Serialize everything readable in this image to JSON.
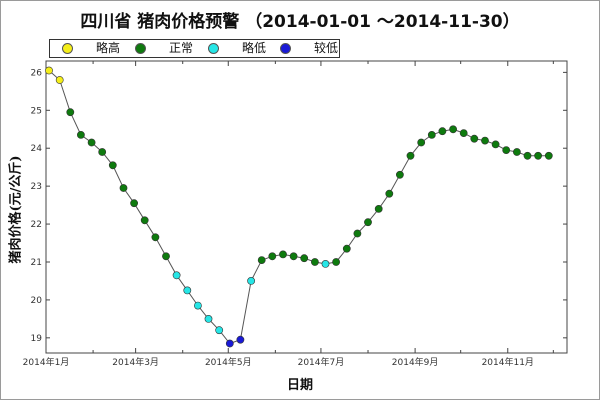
{
  "title": "四川省 猪肉价格预警 （2014-01-01 ～2014-11-30）",
  "legend": [
    {
      "label": "略高",
      "color": "#f4ee1a"
    },
    {
      "label": "正常",
      "color": "#0e7a0e"
    },
    {
      "label": "略低",
      "color": "#26e6e6"
    },
    {
      "label": "较低",
      "color": "#1a1ad6"
    }
  ],
  "chart_data": {
    "type": "line",
    "title": "四川省 猪肉价格预警 （2014-01-01 ～2014-11-30）",
    "xlabel": "日期",
    "ylabel": "猪肉价格(元/公斤)",
    "x_ticks": [
      "2014年1月",
      "2014年3月",
      "2014年5月",
      "2014年7月",
      "2014年9月",
      "2014年11月"
    ],
    "y_ticks": [
      19,
      20,
      21,
      22,
      23,
      24,
      25,
      26
    ],
    "ylim": [
      18.6,
      26.3
    ],
    "xlim": [
      "2014-01-01",
      "2014-12-10"
    ],
    "grid": false,
    "legend_position": "top-left",
    "series": [
      {
        "x": [
          "2014-01-03",
          "2014-01-10",
          "2014-01-17",
          "2014-01-24",
          "2014-01-31",
          "2014-02-07",
          "2014-02-14",
          "2014-02-21",
          "2014-02-28",
          "2014-03-07",
          "2014-03-14",
          "2014-03-21",
          "2014-03-28",
          "2014-04-04",
          "2014-04-11",
          "2014-04-18",
          "2014-04-25",
          "2014-05-02",
          "2014-05-09",
          "2014-05-16",
          "2014-05-23",
          "2014-05-30",
          "2014-06-06",
          "2014-06-13",
          "2014-06-20",
          "2014-06-27",
          "2014-07-04",
          "2014-07-11",
          "2014-07-18",
          "2014-07-25",
          "2014-08-01",
          "2014-08-08",
          "2014-08-15",
          "2014-08-22",
          "2014-08-29",
          "2014-09-05",
          "2014-09-12",
          "2014-09-19",
          "2014-09-26",
          "2014-10-03",
          "2014-10-10",
          "2014-10-17",
          "2014-10-24",
          "2014-10-31",
          "2014-11-07",
          "2014-11-14",
          "2014-11-21",
          "2014-11-28"
        ],
        "y": [
          26.05,
          25.8,
          24.95,
          24.35,
          24.15,
          23.9,
          23.55,
          22.95,
          22.55,
          22.1,
          21.65,
          21.15,
          20.65,
          20.25,
          19.85,
          19.5,
          19.2,
          18.85,
          18.95,
          20.5,
          21.05,
          21.15,
          21.2,
          21.15,
          21.1,
          21.0,
          20.95,
          21.0,
          21.35,
          21.75,
          22.05,
          22.4,
          22.8,
          23.3,
          23.8,
          24.15,
          24.35,
          24.45,
          24.5,
          24.4,
          24.25,
          24.2,
          24.1,
          23.95,
          23.9,
          23.8,
          23.8,
          23.8
        ],
        "levels": [
          "略高",
          "略高",
          "正常",
          "正常",
          "正常",
          "正常",
          "正常",
          "正常",
          "正常",
          "正常",
          "正常",
          "正常",
          "略低",
          "略低",
          "略低",
          "略低",
          "略低",
          "较低",
          "较低",
          "略低",
          "正常",
          "正常",
          "正常",
          "正常",
          "正常",
          "正常",
          "略低",
          "正常",
          "正常",
          "正常",
          "正常",
          "正常",
          "正常",
          "正常",
          "正常",
          "正常",
          "正常",
          "正常",
          "正常",
          "正常",
          "正常",
          "正常",
          "正常",
          "正常",
          "正常",
          "正常",
          "正常",
          "正常"
        ]
      }
    ]
  }
}
